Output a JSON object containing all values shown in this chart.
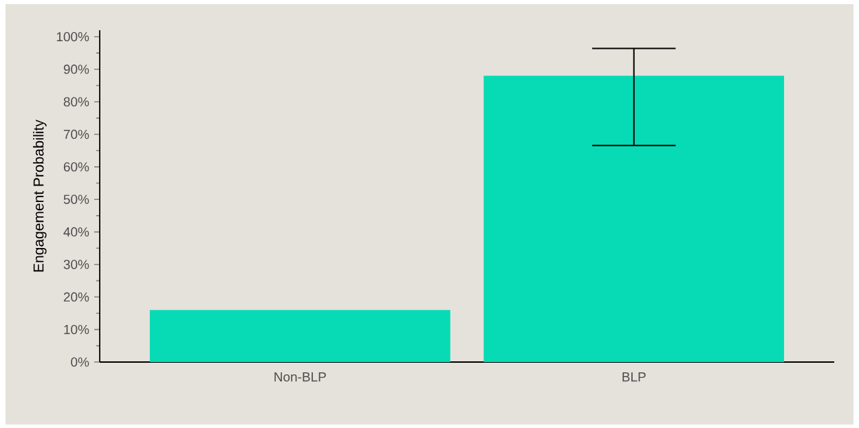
{
  "chart_data": {
    "type": "bar",
    "ylabel": "Engagement Probability",
    "categories": [
      "Non-BLP",
      "BLP"
    ],
    "values": [
      16,
      88
    ],
    "errors": [
      null,
      [
        66.6,
        96.4
      ]
    ],
    "color": "#07dbb5",
    "ylim": [
      0,
      102
    ],
    "yticks": [
      {
        "value": 0,
        "label": "0%"
      },
      {
        "value": 10,
        "label": "10%"
      },
      {
        "value": 20,
        "label": "20%"
      },
      {
        "value": 30,
        "label": "30%"
      },
      {
        "value": 40,
        "label": "40%"
      },
      {
        "value": 50,
        "label": "50%"
      },
      {
        "value": 60,
        "label": "60%"
      },
      {
        "value": 70,
        "label": "70%"
      },
      {
        "value": 80,
        "label": "80%"
      },
      {
        "value": 90,
        "label": "90%"
      },
      {
        "value": 100,
        "label": "100%"
      }
    ],
    "grid": false
  }
}
